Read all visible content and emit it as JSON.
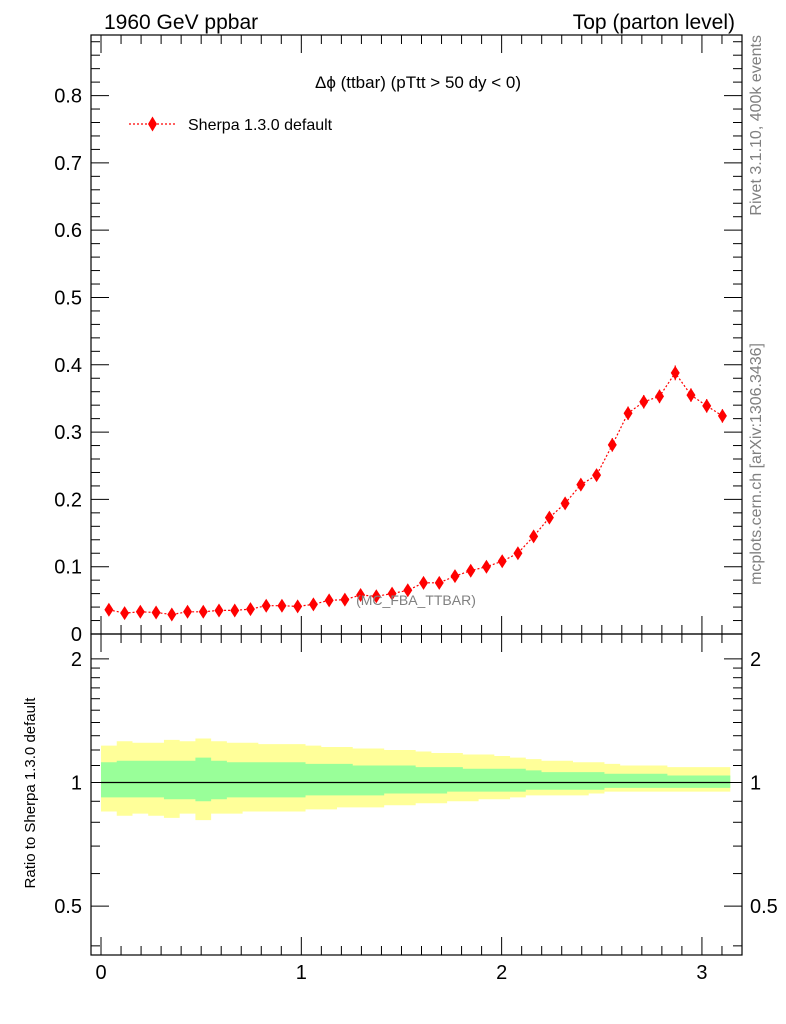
{
  "header": {
    "left": "1960 GeV ppbar",
    "right": "Top (parton level)"
  },
  "side_labels": {
    "rivet": "Rivet 3.1.10,  400k events",
    "mcplots": "mcplots.cern.ch [arXiv:1306.3436]"
  },
  "chart_data": [
    {
      "type": "line",
      "title": "Δϕ (ttbar) (pTtt > 50 dy < 0)",
      "analysis_label": "(MC_FBA_TTBAR)",
      "xlabel": "",
      "ylabel": "",
      "xlim": [
        -0.05,
        3.2
      ],
      "ylim": [
        0,
        0.89
      ],
      "x_ticks": [
        0,
        1,
        2,
        3
      ],
      "y_ticks": [
        0.1,
        0.2,
        0.3,
        0.4,
        0.5,
        0.6,
        0.7,
        0.8
      ],
      "y_tick_labels": [
        "0.1",
        "0.2",
        "0.3",
        "0.4",
        "0.5",
        "0.6",
        "0.7",
        "0.8"
      ],
      "y_zero_label": "0",
      "legend": {
        "position": "top-left",
        "entries": [
          "Sherpa 1.3.0 default"
        ]
      },
      "color": "#ff0000",
      "series": [
        {
          "name": "Sherpa 1.3.0 default",
          "x": [
            0.0393,
            0.1178,
            0.1963,
            0.2749,
            0.3534,
            0.432,
            0.5105,
            0.589,
            0.6676,
            0.7461,
            0.8247,
            0.9032,
            0.9817,
            1.0603,
            1.1388,
            1.2174,
            1.2959,
            1.3744,
            1.453,
            1.5315,
            1.6101,
            1.6886,
            1.7671,
            1.8457,
            1.9242,
            2.0028,
            2.0813,
            2.1598,
            2.2384,
            2.3169,
            2.3955,
            2.474,
            2.5525,
            2.6311,
            2.7096,
            2.7882,
            2.8667,
            2.9452,
            3.0238,
            3.1023
          ],
          "y": [
            0.036,
            0.031,
            0.033,
            0.032,
            0.029,
            0.033,
            0.033,
            0.035,
            0.035,
            0.037,
            0.042,
            0.042,
            0.041,
            0.044,
            0.05,
            0.051,
            0.058,
            0.056,
            0.06,
            0.065,
            0.076,
            0.076,
            0.086,
            0.094,
            0.1,
            0.108,
            0.12,
            0.145,
            0.173,
            0.194,
            0.222,
            0.236,
            0.281,
            0.328,
            0.345,
            0.353,
            0.388,
            0.355,
            0.339,
            0.324
          ],
          "yerr": [
            0.005,
            0.004,
            0.004,
            0.004,
            0.004,
            0.004,
            0.004,
            0.004,
            0.004,
            0.004,
            0.004,
            0.004,
            0.004,
            0.004,
            0.005,
            0.005,
            0.005,
            0.005,
            0.005,
            0.005,
            0.006,
            0.006,
            0.006,
            0.006,
            0.006,
            0.006,
            0.007,
            0.007,
            0.008,
            0.008,
            0.009,
            0.009,
            0.01,
            0.01,
            0.01,
            0.01,
            0.011,
            0.01,
            0.01,
            0.01
          ]
        }
      ]
    },
    {
      "type": "area",
      "ylabel": "Ratio to Sherpa 1.3.0 default",
      "yscale": "log",
      "xlim": [
        -0.05,
        3.2
      ],
      "ylim": [
        0.38,
        2.3
      ],
      "x_ticks": [
        0,
        1,
        2,
        3
      ],
      "x_tick_labels": [
        "0",
        "1",
        "2",
        "3"
      ],
      "y_ticks": [
        0.5,
        1,
        2
      ],
      "y_tick_labels": [
        "0.5",
        "1",
        "2"
      ],
      "reference_line": 1,
      "bands": [
        {
          "name": "yellow-band",
          "color": "#ffff99",
          "upper": [
            1.23,
            1.26,
            1.25,
            1.25,
            1.27,
            1.26,
            1.28,
            1.26,
            1.25,
            1.25,
            1.24,
            1.24,
            1.24,
            1.23,
            1.22,
            1.22,
            1.21,
            1.21,
            1.2,
            1.2,
            1.19,
            1.18,
            1.18,
            1.17,
            1.17,
            1.16,
            1.15,
            1.14,
            1.13,
            1.13,
            1.12,
            1.12,
            1.11,
            1.1,
            1.1,
            1.1,
            1.09,
            1.09,
            1.09,
            1.09
          ],
          "lower": [
            0.85,
            0.83,
            0.84,
            0.83,
            0.82,
            0.84,
            0.81,
            0.84,
            0.84,
            0.85,
            0.85,
            0.85,
            0.85,
            0.86,
            0.86,
            0.87,
            0.87,
            0.87,
            0.88,
            0.88,
            0.89,
            0.89,
            0.9,
            0.9,
            0.91,
            0.91,
            0.92,
            0.93,
            0.93,
            0.93,
            0.93,
            0.94,
            0.95,
            0.95,
            0.95,
            0.95,
            0.95,
            0.95,
            0.95,
            0.95
          ]
        },
        {
          "name": "green-band",
          "color": "#99ff99",
          "upper": [
            1.12,
            1.13,
            1.13,
            1.13,
            1.13,
            1.13,
            1.15,
            1.13,
            1.12,
            1.12,
            1.12,
            1.12,
            1.12,
            1.11,
            1.11,
            1.11,
            1.1,
            1.1,
            1.1,
            1.1,
            1.09,
            1.09,
            1.09,
            1.08,
            1.08,
            1.08,
            1.08,
            1.07,
            1.06,
            1.06,
            1.06,
            1.06,
            1.05,
            1.05,
            1.05,
            1.05,
            1.04,
            1.04,
            1.04,
            1.04
          ],
          "lower": [
            0.92,
            0.92,
            0.92,
            0.92,
            0.91,
            0.91,
            0.9,
            0.91,
            0.92,
            0.92,
            0.92,
            0.92,
            0.92,
            0.93,
            0.93,
            0.93,
            0.93,
            0.93,
            0.94,
            0.94,
            0.94,
            0.94,
            0.95,
            0.95,
            0.95,
            0.95,
            0.95,
            0.96,
            0.96,
            0.96,
            0.96,
            0.96,
            0.97,
            0.97,
            0.97,
            0.97,
            0.97,
            0.97,
            0.97,
            0.97
          ]
        }
      ]
    }
  ]
}
